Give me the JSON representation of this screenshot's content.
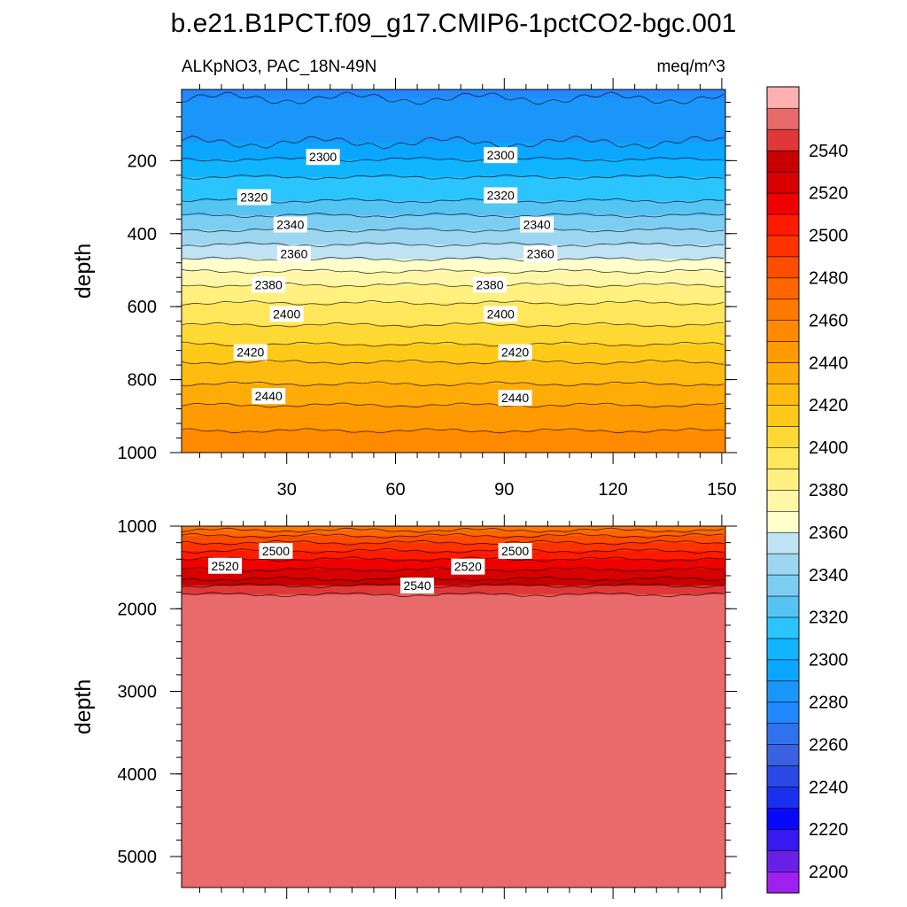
{
  "chart_data": {
    "type": "contour",
    "title": "b.e21.B1PCT.f09_g17.CMIP6-1pctCO2-bgc.001",
    "variable_label": "ALKpNO3, PAC_18N-49N",
    "units": "meq/m^3",
    "x_range": [
      1,
      151
    ],
    "x_ticks": [
      30,
      60,
      90,
      120,
      150
    ],
    "colorbar": {
      "levels": [
        2200,
        2210,
        2220,
        2230,
        2240,
        2250,
        2260,
        2270,
        2280,
        2290,
        2300,
        2310,
        2320,
        2330,
        2340,
        2350,
        2360,
        2370,
        2380,
        2390,
        2400,
        2410,
        2420,
        2430,
        2440,
        2450,
        2460,
        2470,
        2480,
        2490,
        2500,
        2510,
        2520,
        2530,
        2540,
        2550
      ],
      "colors": [
        "#a020f0",
        "#6a1fe8",
        "#3a18f0",
        "#0808ff",
        "#1a30ee",
        "#2a48e6",
        "#3a62e0",
        "#2f72ee",
        "#2288ff",
        "#1a96fa",
        "#0aa6ff",
        "#11b4ff",
        "#2ac4ff",
        "#55c4f2",
        "#7ccdf2",
        "#9dd6f0",
        "#bfe3f2",
        "#ffffcc",
        "#fff7a8",
        "#fff080",
        "#ffe65a",
        "#ffd933",
        "#ffc91a",
        "#ffbb10",
        "#ffab08",
        "#ff9a00",
        "#ff8a00",
        "#ff7800",
        "#ff6600",
        "#ff4d00",
        "#ff3300",
        "#ff1a00",
        "#f00000",
        "#d80000",
        "#c80000",
        "#e03838",
        "#e86a6a",
        "#ffb1b1"
      ],
      "tick_labels": [
        "2200",
        "2220",
        "2240",
        "2260",
        "2280",
        "2300",
        "2320",
        "2340",
        "2360",
        "2380",
        "2400",
        "2420",
        "2440",
        "2460",
        "2480",
        "2500",
        "2520",
        "2540"
      ]
    },
    "panels": [
      {
        "name": "upper",
        "ylabel": "depth",
        "ylim": [
          5,
          1000
        ],
        "y_ticks": [
          200,
          400,
          600,
          800,
          1000
        ],
        "x_tick_labels_shown": true,
        "contour_depth_profile": [
          {
            "depth": 5,
            "value": 2278
          },
          {
            "depth": 150,
            "value": 2290
          },
          {
            "depth": 220,
            "value": 2305
          },
          {
            "depth": 270,
            "value": 2315
          },
          {
            "depth": 310,
            "value": 2320
          },
          {
            "depth": 350,
            "value": 2330
          },
          {
            "depth": 390,
            "value": 2340
          },
          {
            "depth": 430,
            "value": 2350
          },
          {
            "depth": 470,
            "value": 2360
          },
          {
            "depth": 510,
            "value": 2372
          },
          {
            "depth": 560,
            "value": 2385
          },
          {
            "depth": 620,
            "value": 2395
          },
          {
            "depth": 680,
            "value": 2405
          },
          {
            "depth": 740,
            "value": 2418
          },
          {
            "depth": 800,
            "value": 2428
          },
          {
            "depth": 870,
            "value": 2440
          },
          {
            "depth": 940,
            "value": 2450
          },
          {
            "depth": 1000,
            "value": 2460
          }
        ],
        "contour_labels": [
          {
            "text": "2300",
            "x": 40,
            "depth": 190
          },
          {
            "text": "2300",
            "x": 89,
            "depth": 185
          },
          {
            "text": "2320",
            "x": 21,
            "depth": 300
          },
          {
            "text": "2320",
            "x": 89,
            "depth": 295
          },
          {
            "text": "2340",
            "x": 31,
            "depth": 375
          },
          {
            "text": "2340",
            "x": 99,
            "depth": 375
          },
          {
            "text": "2360",
            "x": 32,
            "depth": 455
          },
          {
            "text": "2360",
            "x": 100,
            "depth": 455
          },
          {
            "text": "2380",
            "x": 25,
            "depth": 540
          },
          {
            "text": "2380",
            "x": 86,
            "depth": 540
          },
          {
            "text": "2400",
            "x": 30,
            "depth": 620
          },
          {
            "text": "2400",
            "x": 89,
            "depth": 620
          },
          {
            "text": "2420",
            "x": 20,
            "depth": 725
          },
          {
            "text": "2420",
            "x": 93,
            "depth": 725
          },
          {
            "text": "2440",
            "x": 25,
            "depth": 845
          },
          {
            "text": "2440",
            "x": 93,
            "depth": 850
          }
        ]
      },
      {
        "name": "lower",
        "ylabel": "depth",
        "ylim": [
          1000,
          5375
        ],
        "y_ticks": [
          1000,
          2000,
          3000,
          4000,
          5000
        ],
        "x_tick_labels_shown": false,
        "contour_depth_profile": [
          {
            "depth": 1000,
            "value": 2460
          },
          {
            "depth": 1050,
            "value": 2470
          },
          {
            "depth": 1150,
            "value": 2485
          },
          {
            "depth": 1300,
            "value": 2500
          },
          {
            "depth": 1450,
            "value": 2515
          },
          {
            "depth": 1600,
            "value": 2525
          },
          {
            "depth": 1720,
            "value": 2540
          },
          {
            "depth": 1850,
            "value": 2552
          },
          {
            "depth": 5375,
            "value": 2556
          }
        ],
        "contour_labels": [
          {
            "text": "2500",
            "x": 27,
            "depth": 1300
          },
          {
            "text": "2500",
            "x": 93,
            "depth": 1300
          },
          {
            "text": "2520",
            "x": 13,
            "depth": 1480
          },
          {
            "text": "2520",
            "x": 80,
            "depth": 1490
          },
          {
            "text": "2540",
            "x": 66,
            "depth": 1720
          }
        ]
      }
    ]
  }
}
